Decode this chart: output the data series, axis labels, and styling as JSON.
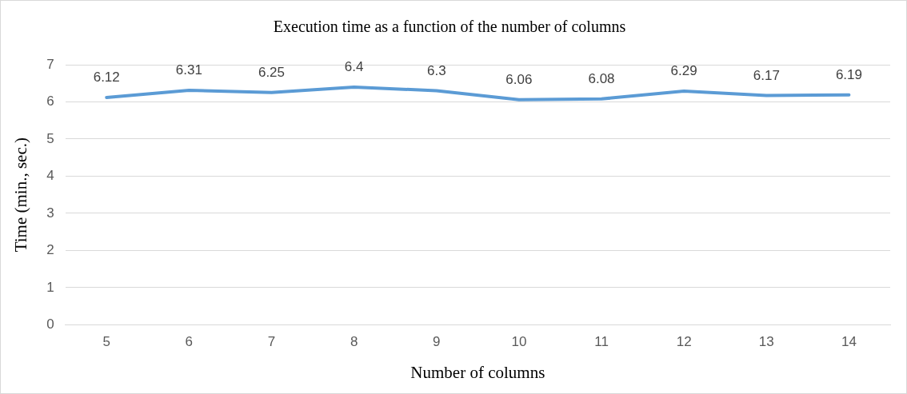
{
  "chart_data": {
    "type": "line",
    "title": "Execution time as a function of the number of columns",
    "xlabel": "Number of columns",
    "ylabel": "Time (min., sec.)",
    "categories": [
      "5",
      "6",
      "7",
      "8",
      "9",
      "10",
      "11",
      "12",
      "13",
      "14"
    ],
    "series": [
      {
        "color": "#5b9bd5",
        "values": [
          6.12,
          6.31,
          6.25,
          6.4,
          6.3,
          6.06,
          6.08,
          6.29,
          6.17,
          6.19
        ]
      }
    ],
    "ylim": [
      0,
      7
    ],
    "yticks": [
      0,
      1,
      2,
      3,
      4,
      5,
      6,
      7
    ],
    "grid": "y",
    "legend": false,
    "marker": "none",
    "line_style": "solid",
    "data_labels": true
  }
}
